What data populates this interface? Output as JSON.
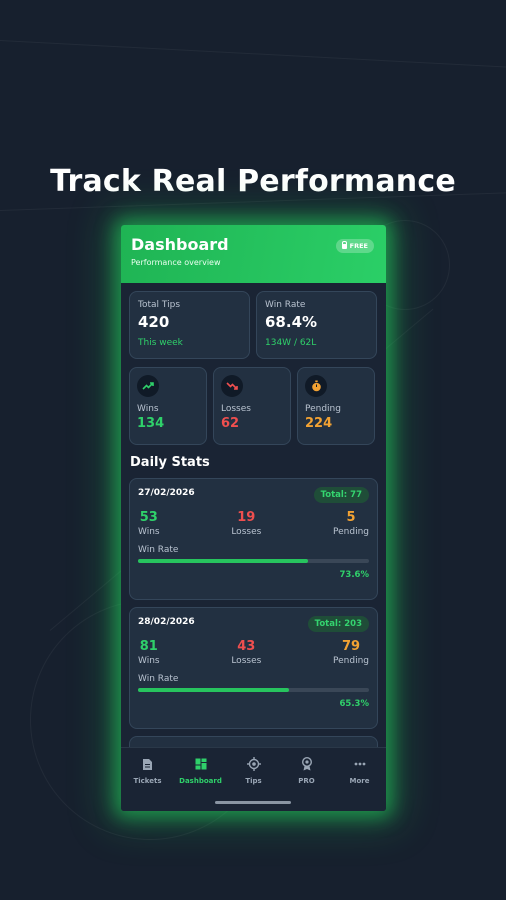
{
  "headline": "Track Real Performance",
  "header": {
    "title": "Dashboard",
    "subtitle": "Performance overview",
    "badge": "FREE"
  },
  "summary": {
    "total_tips": {
      "label": "Total Tips",
      "value": "420",
      "foot": "This week"
    },
    "win_rate": {
      "label": "Win Rate",
      "value": "68.4%",
      "foot": "134W / 62L"
    }
  },
  "counts": {
    "wins": {
      "label": "Wins",
      "value": "134",
      "color": "#2fd06a",
      "icon": "trend-up-icon"
    },
    "losses": {
      "label": "Losses",
      "value": "62",
      "color": "#ef4f4f",
      "icon": "trend-down-icon"
    },
    "pending": {
      "label": "Pending",
      "value": "224",
      "color": "#f2a233",
      "icon": "stopwatch-icon"
    }
  },
  "daily_stats": {
    "title": "Daily Stats",
    "days": [
      {
        "date": "27/02/2026",
        "total": "Total: 77",
        "wins": "53",
        "losses": "19",
        "pending": "5",
        "wins_label": "Wins",
        "losses_label": "Losses",
        "pending_label": "Pending",
        "win_rate_label": "Win Rate",
        "win_rate_pct": "73.6%",
        "win_rate": 73.6
      },
      {
        "date": "28/02/2026",
        "total": "Total: 203",
        "wins": "81",
        "losses": "43",
        "pending": "79",
        "wins_label": "Wins",
        "losses_label": "Losses",
        "pending_label": "Pending",
        "win_rate_label": "Win Rate",
        "win_rate_pct": "65.3%",
        "win_rate": 65.3
      }
    ]
  },
  "nav": [
    {
      "label": "Tickets",
      "icon": "ticket-icon",
      "active": false
    },
    {
      "label": "Dashboard",
      "icon": "dashboard-icon",
      "active": true
    },
    {
      "label": "Tips",
      "icon": "target-icon",
      "active": false
    },
    {
      "label": "PRO",
      "icon": "pro-icon",
      "active": false
    },
    {
      "label": "More",
      "icon": "more-icon",
      "active": false
    }
  ],
  "colors": {
    "accent": "#2bcf67",
    "win": "#2fd06a",
    "loss": "#ef4f4f",
    "pending": "#f2a233"
  }
}
